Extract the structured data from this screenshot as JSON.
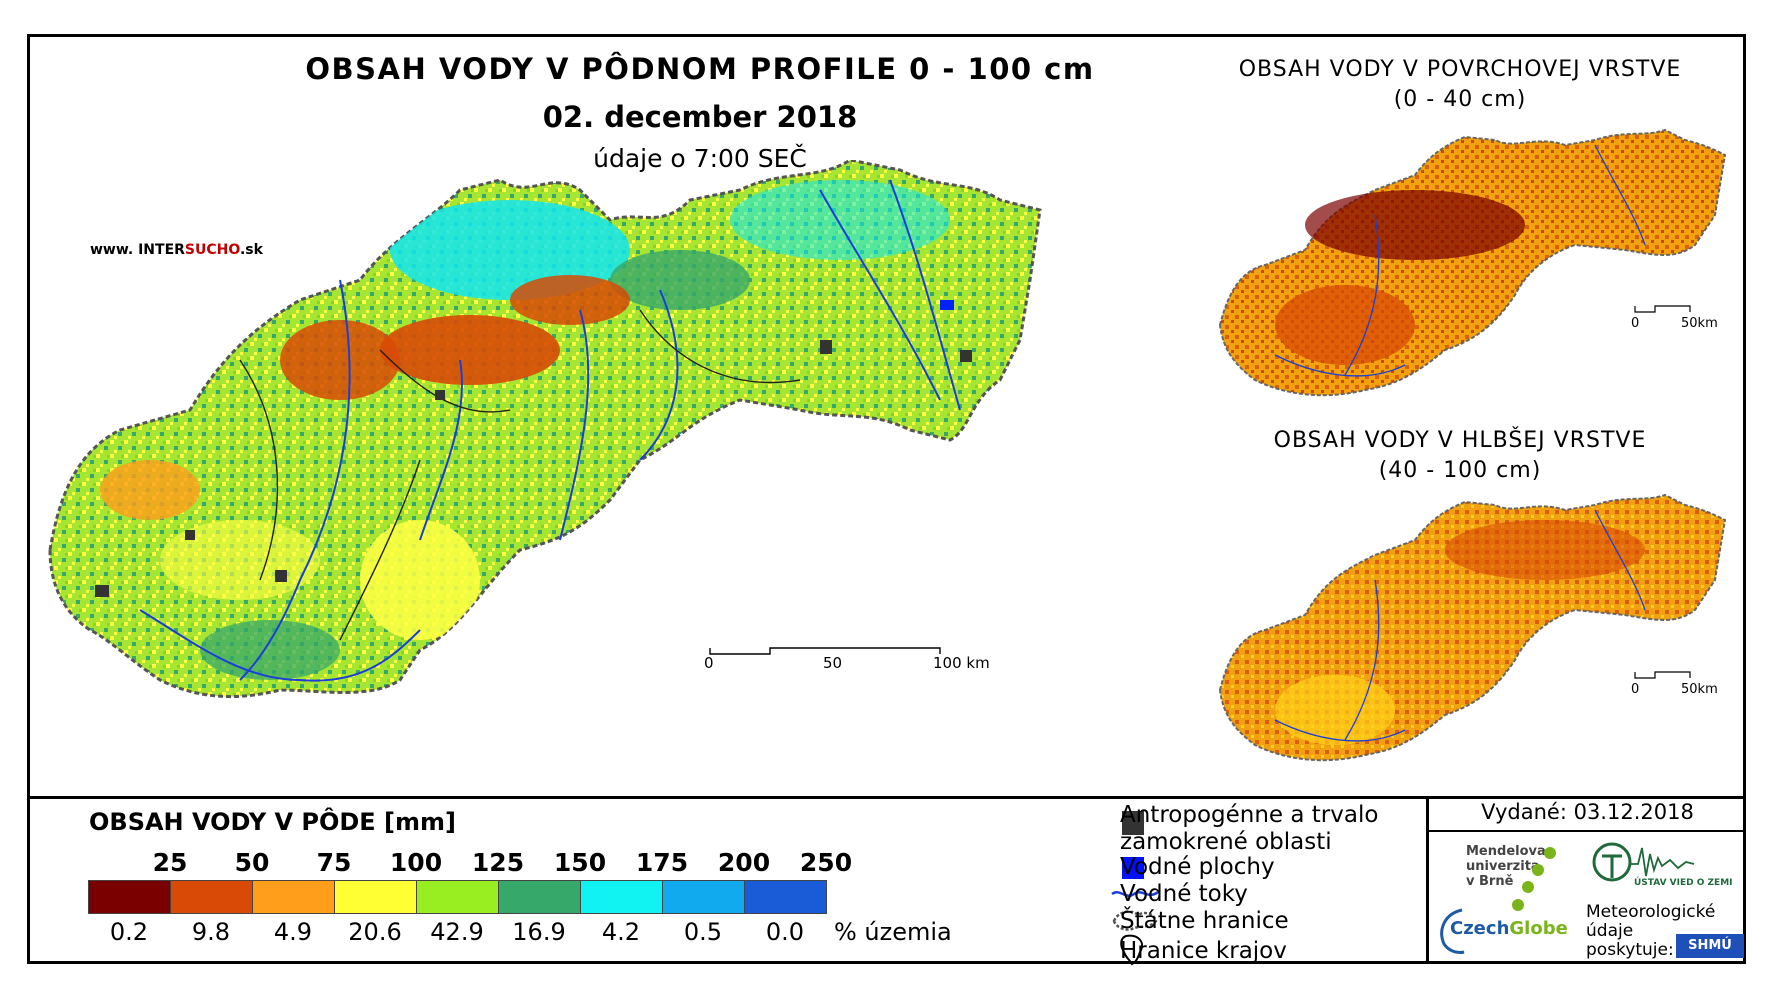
{
  "titles": {
    "main": "OBSAH VODY V PÔDNOM PROFILE 0 - 100 cm",
    "date": "02. december 2018",
    "time": "údaje o 7:00 SEČ"
  },
  "website": {
    "prefix": "www. INTER",
    "accent": "SUCHO",
    "suffix": ".sk"
  },
  "inset_surface": {
    "title_line1": "OBSAH VODY V POVRCHOVEJ VRSTVE",
    "title_line2": "(0 - 40 cm)",
    "scale_zero": "0",
    "scale_end": "50km"
  },
  "inset_deep": {
    "title_line1": "OBSAH VODY V HLBŠEJ VRSTVE",
    "title_line2": "(40 - 100 cm)",
    "scale_zero": "0",
    "scale_end": "50km"
  },
  "main_scale": {
    "zero": "0",
    "mid": "50",
    "end": "100 km"
  },
  "legend": {
    "title": "OBSAH VODY V PÔDE [mm]",
    "thresholds": [
      "25",
      "50",
      "75",
      "100",
      "125",
      "150",
      "175",
      "200",
      "250"
    ],
    "colors": [
      "#7a0000",
      "#d84a06",
      "#ff9e1a",
      "#ffff33",
      "#99ee22",
      "#36a86a",
      "#11f2f2",
      "#11aaee",
      "#1a5cd8"
    ],
    "percentages": [
      "0.2",
      "9.8",
      "4.9",
      "20.6",
      "42.9",
      "16.9",
      "4.2",
      "0.5",
      "0.0"
    ],
    "percent_label": "% územia"
  },
  "key": {
    "anthropogenic_line1": "Antropogénne a trvalo",
    "anthropogenic_line2": "zamokrené oblasti",
    "water_bodies": "Vodné plochy",
    "rivers": "Vodné toky",
    "state_border": "Štátne hranice",
    "region_border": "Hranice krajov"
  },
  "issued": "Vydané: 03.12.2018",
  "logos": {
    "mendel_line1": "Mendelova",
    "mendel_line2": "univerzita",
    "mendel_line3": "v Brně",
    "czechglobe_a": "Czech",
    "czechglobe_b": "Globe",
    "ustav": "ÚSTAV VIED O ZEMI",
    "meteo_line1": "Meteorologické",
    "meteo_line2": "údaje",
    "meteo_line3": "poskytuje:",
    "shmu": "SHMÚ"
  }
}
